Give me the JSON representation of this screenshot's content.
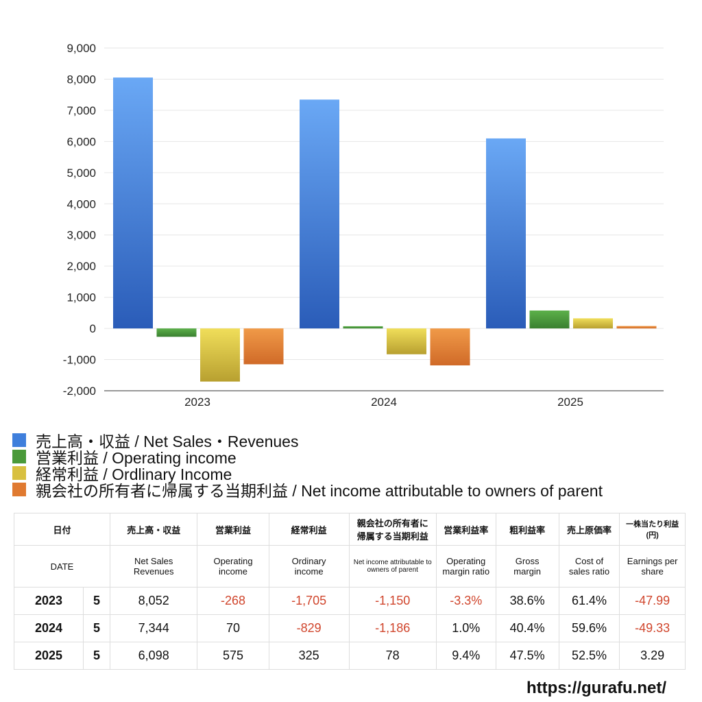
{
  "chart_data": {
    "type": "bar",
    "categories": [
      "2023",
      "2024",
      "2025"
    ],
    "ylim": [
      -2000,
      9000
    ],
    "yticks": [
      "9,000",
      "8,000",
      "7,000",
      "6,000",
      "5,000",
      "4,000",
      "3,000",
      "2,000",
      "1,000",
      "0",
      "-1,000",
      "-2,000"
    ],
    "series": [
      {
        "name": "売上高・収益 / Net Sales・Revenues",
        "values": [
          8052,
          7344,
          6098
        ],
        "color": "#3f7fdc"
      },
      {
        "name": "営業利益 / Operating income",
        "values": [
          -268,
          70,
          575
        ],
        "color": "#4a9a3a"
      },
      {
        "name": "経常利益 / Ordlinary Income",
        "values": [
          -1705,
          -829,
          325
        ],
        "color": "#d8c040"
      },
      {
        "name": "親会社の所有者に帰属する当期利益 / Net income attributable to owners of parent",
        "values": [
          -1150,
          -1186,
          78
        ],
        "color": "#e07a30"
      }
    ]
  },
  "table": {
    "h1": [
      "日付",
      "売上高・収益",
      "営業利益",
      "経常利益",
      "親会社の所有者に帰属する当期利益",
      "営業利益率",
      "粗利益率",
      "売上原価率",
      "一株当たり利益(円)"
    ],
    "h2": [
      "DATE",
      "Net Sales Revenues",
      "Operating income",
      "Ordinary income",
      "Net income attributable to owners of parent",
      "Operating margin ratio",
      "Gross margin",
      "Cost of sales ratio",
      "Earnings per share"
    ],
    "rows": [
      [
        "2023",
        "5",
        "8,052",
        "-268",
        "-1,705",
        "-1,150",
        "-3.3%",
        "38.6%",
        "61.4%",
        "-47.99"
      ],
      [
        "2024",
        "5",
        "7,344",
        "70",
        "-829",
        "-1,186",
        "1.0%",
        "40.4%",
        "59.6%",
        "-49.33"
      ],
      [
        "2025",
        "5",
        "6,098",
        "575",
        "325",
        "78",
        "9.4%",
        "47.5%",
        "52.5%",
        "3.29"
      ]
    ]
  },
  "footer": {
    "url": "https://gurafu.net/"
  }
}
